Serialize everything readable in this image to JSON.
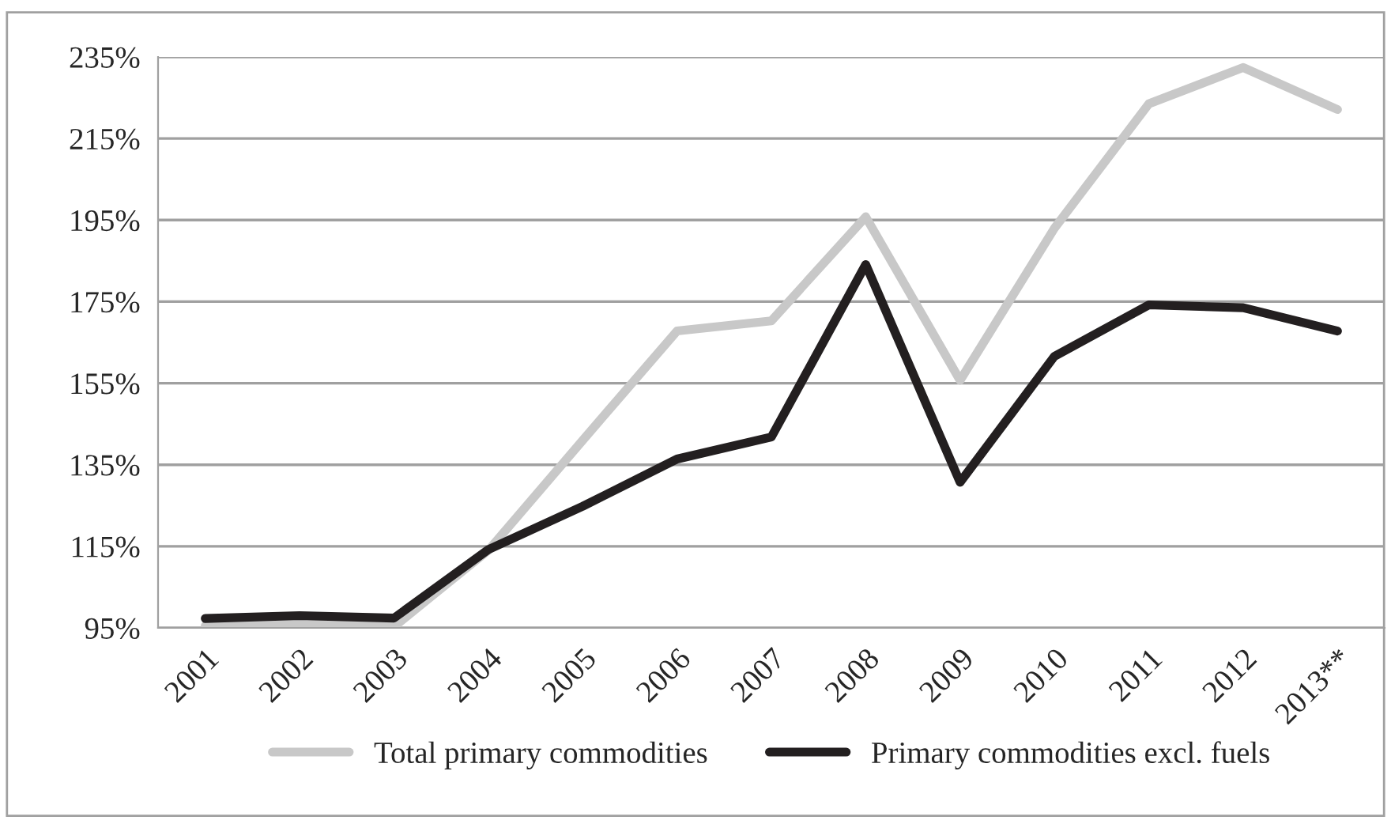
{
  "chart_data": {
    "type": "line",
    "categories": [
      "2001",
      "2002",
      "2003",
      "2004",
      "2005",
      "2006",
      "2007",
      "2008",
      "2009",
      "2010",
      "2011",
      "2012",
      "2013**"
    ],
    "series": [
      {
        "name": "Total primary commodities",
        "color": "#c8c8c8",
        "values": [
          95.5,
          96,
          95.3,
          114,
          141,
          167.8,
          170.3,
          195.8,
          155.7,
          193,
          223.5,
          232.4,
          222.1
        ]
      },
      {
        "name": "Primary commodities excl. fuels",
        "color": "#231f20",
        "values": [
          97.3,
          98,
          97.4,
          114.2,
          124.8,
          136.4,
          141.8,
          184.1,
          130.7,
          161.6,
          174.2,
          173.5,
          167.8
        ]
      }
    ],
    "ylim": [
      95,
      235
    ],
    "yticks": [
      {
        "value": 95,
        "label": "95%"
      },
      {
        "value": 115,
        "label": "115%"
      },
      {
        "value": 135,
        "label": "135%"
      },
      {
        "value": 155,
        "label": "155%"
      },
      {
        "value": 175,
        "label": "175%"
      },
      {
        "value": 195,
        "label": "195%"
      },
      {
        "value": 215,
        "label": "215%"
      },
      {
        "value": 235,
        "label": "235%"
      }
    ],
    "grid": "y",
    "legend": "bottom",
    "line_style": "solid",
    "marker": "none"
  }
}
